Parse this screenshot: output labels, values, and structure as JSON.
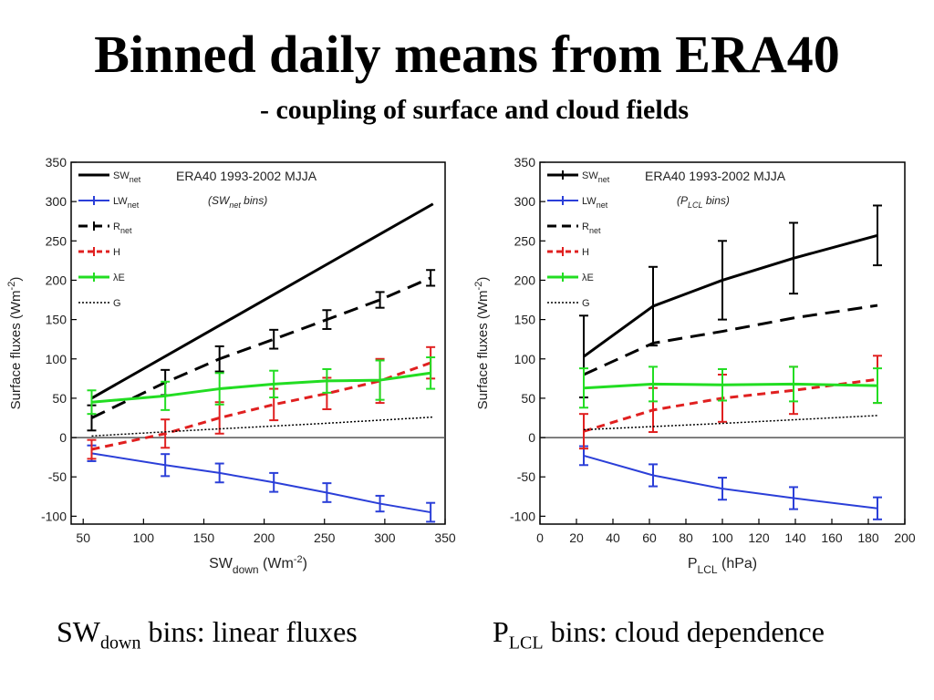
{
  "page": {
    "title": "Binned daily means from ERA40",
    "subtitle": "- coupling of surface and cloud fields",
    "captions": [
      {
        "main": "SW",
        "sub": "down",
        "rest": " bins: linear fluxes"
      },
      {
        "main": "P",
        "sub": "LCL",
        "rest": " bins: cloud dependence"
      }
    ]
  },
  "chart_data": [
    {
      "type": "line",
      "header": "ERA40 1993-2002 MJJA",
      "bins_label": {
        "pre": "(SW",
        "sub": "net",
        "post": " bins)"
      },
      "xlabel": {
        "main": "SW",
        "sub": "down",
        "unit_pre": " (Wm",
        "unit_sup": "-2",
        "unit_post": ")"
      },
      "ylabel": "Surface fluxes (Wm-2)",
      "xlim": [
        40,
        350
      ],
      "ylim": [
        -110,
        350
      ],
      "xticks": [
        50,
        100,
        150,
        200,
        250,
        300,
        350
      ],
      "yticks": [
        -100,
        -50,
        0,
        50,
        100,
        150,
        200,
        250,
        300,
        350
      ],
      "legend_position": "top-left",
      "grid": false,
      "series": [
        {
          "legend": "SW",
          "legend_sub": "net",
          "color": "#000000",
          "dash": "solid",
          "width": 3,
          "x": [
            57,
            340
          ],
          "y": [
            50,
            297
          ],
          "err": null
        },
        {
          "legend": "LW",
          "legend_sub": "net",
          "color": "#2b3fd8",
          "dash": "solid",
          "width": 2,
          "x": [
            57,
            118,
            163,
            208,
            252,
            296,
            338
          ],
          "y": [
            -20,
            -35,
            -45,
            -57,
            -70,
            -84,
            -95
          ],
          "err": [
            10,
            14,
            12,
            12,
            12,
            10,
            12
          ],
          "bars": true
        },
        {
          "legend": "R",
          "legend_sub": "net",
          "color": "#000000",
          "dash": "long",
          "width": 3,
          "x": [
            57,
            118,
            163,
            208,
            252,
            296,
            338
          ],
          "y": [
            25,
            70,
            100,
            125,
            150,
            175,
            203
          ],
          "err": [
            16,
            16,
            16,
            12,
            12,
            10,
            10
          ],
          "bars": true
        },
        {
          "legend": "H",
          "legend_sub": "",
          "color": "#e02020",
          "dash": "short",
          "width": 3,
          "x": [
            57,
            118,
            163,
            208,
            252,
            296,
            338
          ],
          "y": [
            -15,
            5,
            25,
            42,
            56,
            72,
            95
          ],
          "err": [
            12,
            18,
            20,
            20,
            20,
            28,
            20
          ],
          "bars": true
        },
        {
          "legend": "λE",
          "legend_sub": "",
          "color": "#22dd22",
          "dash": "solid",
          "width": 3,
          "x": [
            57,
            118,
            163,
            208,
            252,
            296,
            338
          ],
          "y": [
            45,
            53,
            62,
            68,
            72,
            73,
            82
          ],
          "err": [
            15,
            18,
            20,
            17,
            15,
            25,
            20
          ],
          "bars": true
        },
        {
          "legend": "G",
          "legend_sub": "",
          "color": "#000000",
          "dash": "dot",
          "width": 1.5,
          "x": [
            57,
            150,
            250,
            340
          ],
          "y": [
            2,
            10,
            18,
            26
          ],
          "err": null
        }
      ]
    },
    {
      "type": "line",
      "header": "ERA40 1993-2002 MJJA",
      "bins_label": {
        "pre": "(P",
        "sub": "LCL",
        "post": " bins)"
      },
      "xlabel": {
        "main": "P",
        "sub": "LCL",
        "unit_pre": " (hPa)",
        "unit_sup": "",
        "unit_post": ""
      },
      "ylabel": "Surface fluxes (Wm-2)",
      "xlim": [
        0,
        200
      ],
      "ylim": [
        -110,
        350
      ],
      "xticks": [
        0,
        20,
        40,
        60,
        80,
        100,
        120,
        140,
        160,
        180,
        200
      ],
      "yticks": [
        -100,
        -50,
        0,
        50,
        100,
        150,
        200,
        250,
        300,
        350
      ],
      "legend_position": "top-left",
      "grid": false,
      "series": [
        {
          "legend": "SW",
          "legend_sub": "net",
          "color": "#000000",
          "dash": "solid",
          "width": 3,
          "x": [
            24,
            62,
            100,
            139,
            185
          ],
          "y": [
            103,
            167,
            200,
            228,
            257
          ],
          "err": [
            52,
            50,
            50,
            45,
            38
          ],
          "bars": true
        },
        {
          "legend": "LW",
          "legend_sub": "net",
          "color": "#2b3fd8",
          "dash": "solid",
          "width": 2,
          "x": [
            24,
            62,
            100,
            139,
            185
          ],
          "y": [
            -23,
            -48,
            -65,
            -77,
            -90
          ],
          "err": [
            12,
            14,
            14,
            14,
            14
          ],
          "bars": true
        },
        {
          "legend": "R",
          "legend_sub": "net",
          "color": "#000000",
          "dash": "long",
          "width": 3,
          "x": [
            24,
            62,
            100,
            139,
            185
          ],
          "y": [
            80,
            120,
            135,
            152,
            168
          ],
          "err": null
        },
        {
          "legend": "H",
          "legend_sub": "",
          "color": "#e02020",
          "dash": "short",
          "width": 3,
          "x": [
            24,
            62,
            100,
            139,
            185
          ],
          "y": [
            8,
            35,
            50,
            60,
            74
          ],
          "err": [
            22,
            28,
            30,
            30,
            30
          ],
          "bars": true
        },
        {
          "legend": "λE",
          "legend_sub": "",
          "color": "#22dd22",
          "dash": "solid",
          "width": 3,
          "x": [
            24,
            62,
            100,
            139,
            185
          ],
          "y": [
            63,
            68,
            67,
            68,
            66
          ],
          "err": [
            25,
            22,
            20,
            22,
            22
          ],
          "bars": true
        },
        {
          "legend": "G",
          "legend_sub": "",
          "color": "#000000",
          "dash": "dot",
          "width": 1.5,
          "x": [
            24,
            100,
            185
          ],
          "y": [
            10,
            18,
            28
          ],
          "err": null
        }
      ]
    }
  ]
}
